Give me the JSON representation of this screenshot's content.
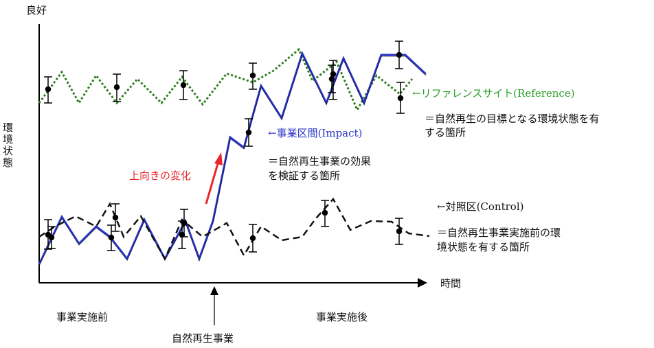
{
  "axes": {
    "y_top_label": "良好",
    "y_label": "環境状態",
    "x_label": "時間"
  },
  "periods": {
    "before": "事業実施前",
    "after": "事業実施後",
    "event": "自然再生事業"
  },
  "annotations": {
    "upward_change": "上向きの変化"
  },
  "series": {
    "reference": {
      "name": "←リファレンスサイト(Reference)",
      "desc_1": "＝自然再生の目標となる環境状態を有",
      "desc_2": "する箇所",
      "color": "#2e7d1e"
    },
    "impact": {
      "name": "←事業区間(Impact)",
      "desc_1": "＝自然再生事業の効果",
      "desc_2": "を検証する箇所",
      "color": "#2a36c8"
    },
    "control": {
      "name": "←対照区(Control)",
      "desc_1": "＝自然再生事業実施前の環",
      "desc_2": "境状態を有する箇所",
      "color": "#111111"
    }
  },
  "colors": {
    "axis": "#000000",
    "arrow": "#e8262c"
  }
}
